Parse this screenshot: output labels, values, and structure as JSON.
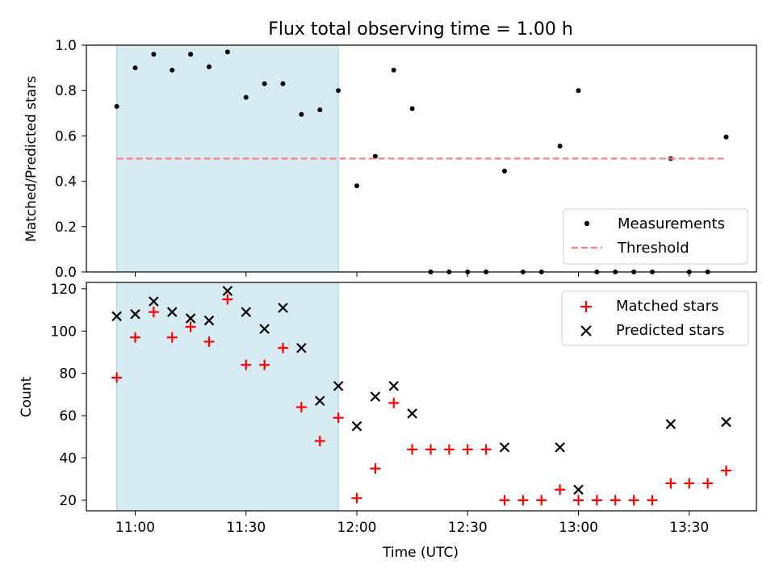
{
  "chart_data": [
    {
      "type": "scatter",
      "title": "Flux total observing time = 1.00 h",
      "xlabel": "",
      "ylabel": "Matched/Predicted stars",
      "ylim": [
        0,
        1.0
      ],
      "yticks": [
        "0.0",
        "0.2",
        "0.4",
        "0.6",
        "0.8",
        "1.0"
      ],
      "ytick_values": [
        0,
        0.2,
        0.4,
        0.6,
        0.8,
        1.0
      ],
      "shaded_region": {
        "x_start": "10:55",
        "x_end": "11:55",
        "color": "#add8e6"
      },
      "legend": {
        "placement": "lower right",
        "entries": [
          "Measurements",
          "Threshold"
        ]
      },
      "series": [
        {
          "name": "Measurements",
          "marker": "dot",
          "color": "#000000",
          "points": [
            {
              "t": "10:55",
              "y": 0.73
            },
            {
              "t": "11:00",
              "y": 0.9
            },
            {
              "t": "11:05",
              "y": 0.96
            },
            {
              "t": "11:10",
              "y": 0.89
            },
            {
              "t": "11:15",
              "y": 0.96
            },
            {
              "t": "11:20",
              "y": 0.905
            },
            {
              "t": "11:25",
              "y": 0.97
            },
            {
              "t": "11:30",
              "y": 0.77
            },
            {
              "t": "11:35",
              "y": 0.83
            },
            {
              "t": "11:40",
              "y": 0.83
            },
            {
              "t": "11:45",
              "y": 0.695
            },
            {
              "t": "11:50",
              "y": 0.715
            },
            {
              "t": "11:55",
              "y": 0.8
            },
            {
              "t": "12:00",
              "y": 0.38
            },
            {
              "t": "12:05",
              "y": 0.51
            },
            {
              "t": "12:10",
              "y": 0.89
            },
            {
              "t": "12:15",
              "y": 0.72
            },
            {
              "t": "12:20",
              "y": 0.0
            },
            {
              "t": "12:25",
              "y": 0.0
            },
            {
              "t": "12:30",
              "y": 0.0
            },
            {
              "t": "12:35",
              "y": 0.0
            },
            {
              "t": "12:40",
              "y": 0.445
            },
            {
              "t": "12:45",
              "y": 0.0
            },
            {
              "t": "12:50",
              "y": 0.0
            },
            {
              "t": "12:55",
              "y": 0.555
            },
            {
              "t": "13:00",
              "y": 0.8
            },
            {
              "t": "13:05",
              "y": 0.0
            },
            {
              "t": "13:10",
              "y": 0.0
            },
            {
              "t": "13:15",
              "y": 0.0
            },
            {
              "t": "13:20",
              "y": 0.0
            },
            {
              "t": "13:25",
              "y": 0.5
            },
            {
              "t": "13:30",
              "y": 0.0
            },
            {
              "t": "13:35",
              "y": 0.0
            },
            {
              "t": "13:40",
              "y": 0.595
            }
          ]
        },
        {
          "name": "Threshold",
          "marker": "dashed-line",
          "color": "#ff7f7f",
          "points": [
            {
              "t": "10:55",
              "y": 0.5
            },
            {
              "t": "13:40",
              "y": 0.5
            }
          ]
        }
      ]
    },
    {
      "type": "scatter",
      "title": "",
      "xlabel": "Time (UTC)",
      "ylabel": "Count",
      "ylim": [
        15,
        123
      ],
      "yticks": [
        "20",
        "40",
        "60",
        "80",
        "100",
        "120"
      ],
      "ytick_values": [
        20,
        40,
        60,
        80,
        100,
        120
      ],
      "xticks": [
        "11:00",
        "11:30",
        "12:00",
        "12:30",
        "13:00",
        "13:30"
      ],
      "shaded_region": {
        "x_start": "10:55",
        "x_end": "11:55",
        "color": "#add8e6"
      },
      "legend": {
        "placement": "upper right",
        "entries": [
          "Matched stars",
          "Predicted stars"
        ]
      },
      "series": [
        {
          "name": "Matched stars",
          "marker": "plus",
          "color": "#ff0000",
          "points": [
            {
              "t": "10:55",
              "y": 78
            },
            {
              "t": "11:00",
              "y": 97
            },
            {
              "t": "11:05",
              "y": 109
            },
            {
              "t": "11:10",
              "y": 97
            },
            {
              "t": "11:15",
              "y": 102
            },
            {
              "t": "11:20",
              "y": 95
            },
            {
              "t": "11:25",
              "y": 115
            },
            {
              "t": "11:30",
              "y": 84
            },
            {
              "t": "11:35",
              "y": 84
            },
            {
              "t": "11:40",
              "y": 92
            },
            {
              "t": "11:45",
              "y": 64
            },
            {
              "t": "11:50",
              "y": 48
            },
            {
              "t": "11:55",
              "y": 59
            },
            {
              "t": "12:00",
              "y": 21
            },
            {
              "t": "12:05",
              "y": 35
            },
            {
              "t": "12:10",
              "y": 66
            },
            {
              "t": "12:15",
              "y": 44
            },
            {
              "t": "12:20",
              "y": 44
            },
            {
              "t": "12:25",
              "y": 44
            },
            {
              "t": "12:30",
              "y": 44
            },
            {
              "t": "12:35",
              "y": 44
            },
            {
              "t": "12:40",
              "y": 20
            },
            {
              "t": "12:45",
              "y": 20
            },
            {
              "t": "12:50",
              "y": 20
            },
            {
              "t": "12:55",
              "y": 25
            },
            {
              "t": "13:00",
              "y": 20
            },
            {
              "t": "13:05",
              "y": 20
            },
            {
              "t": "13:10",
              "y": 20
            },
            {
              "t": "13:15",
              "y": 20
            },
            {
              "t": "13:20",
              "y": 20
            },
            {
              "t": "13:25",
              "y": 28
            },
            {
              "t": "13:30",
              "y": 28
            },
            {
              "t": "13:35",
              "y": 28
            },
            {
              "t": "13:40",
              "y": 34
            }
          ]
        },
        {
          "name": "Predicted stars",
          "marker": "x",
          "color": "#000000",
          "points": [
            {
              "t": "10:55",
              "y": 107
            },
            {
              "t": "11:00",
              "y": 108
            },
            {
              "t": "11:05",
              "y": 114
            },
            {
              "t": "11:10",
              "y": 109
            },
            {
              "t": "11:15",
              "y": 106
            },
            {
              "t": "11:20",
              "y": 105
            },
            {
              "t": "11:25",
              "y": 119
            },
            {
              "t": "11:30",
              "y": 109
            },
            {
              "t": "11:35",
              "y": 101
            },
            {
              "t": "11:40",
              "y": 111
            },
            {
              "t": "11:45",
              "y": 92
            },
            {
              "t": "11:50",
              "y": 67
            },
            {
              "t": "11:55",
              "y": 74
            },
            {
              "t": "12:00",
              "y": 55
            },
            {
              "t": "12:05",
              "y": 69
            },
            {
              "t": "12:10",
              "y": 74
            },
            {
              "t": "12:15",
              "y": 61
            },
            {
              "t": "12:40",
              "y": 45
            },
            {
              "t": "12:55",
              "y": 45
            },
            {
              "t": "13:00",
              "y": 25
            },
            {
              "t": "13:25",
              "y": 56
            },
            {
              "t": "13:40",
              "y": 57
            }
          ]
        }
      ]
    }
  ]
}
